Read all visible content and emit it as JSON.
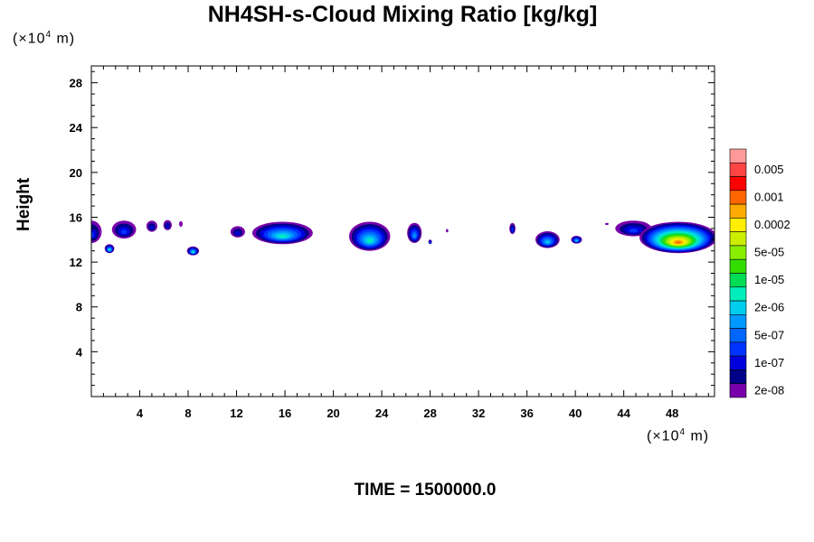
{
  "chart_data": {
    "type": "heatmap",
    "title": "NH4SH-s-Cloud Mixing Ratio [kg/kg]",
    "ylabel": "Height",
    "xlabel": "",
    "x_unit_prefix": "(×10",
    "x_unit_exp": "4",
    "x_unit_suffix": " m)",
    "y_unit_prefix": "(×10",
    "y_unit_exp": "4",
    "y_unit_suffix": " m)",
    "xlim": [
      0,
      51.5
    ],
    "ylim": [
      0,
      29.5
    ],
    "x_ticks": [
      4,
      8,
      12,
      16,
      20,
      24,
      28,
      32,
      36,
      40,
      44,
      48
    ],
    "y_ticks": [
      4,
      8,
      12,
      16,
      20,
      24,
      28
    ],
    "colorbar": {
      "labels": [
        "0.005",
        "0.001",
        "0.0002",
        "5e-05",
        "1e-05",
        "2e-06",
        "5e-07",
        "1e-07",
        "2e-08"
      ],
      "colors": [
        "#ff9999",
        "#ff4444",
        "#ff0000",
        "#ff6600",
        "#ffaa00",
        "#ffee00",
        "#ccee00",
        "#88ee00",
        "#33dd00",
        "#00dd55",
        "#00eebb",
        "#00ccee",
        "#0099ff",
        "#0066ff",
        "#0033ff",
        "#0000dd",
        "#000088",
        "#7700aa"
      ]
    },
    "clouds": [
      {
        "x": 0.0,
        "y": 14.7,
        "w": 1.7,
        "h": 2.0,
        "level": 3
      },
      {
        "x": 1.5,
        "y": 13.2,
        "w": 0.8,
        "h": 0.8,
        "level": 7
      },
      {
        "x": 2.7,
        "y": 14.9,
        "w": 2.0,
        "h": 1.6,
        "level": 3
      },
      {
        "x": 5.0,
        "y": 15.2,
        "w": 0.9,
        "h": 1.0,
        "level": 2
      },
      {
        "x": 6.3,
        "y": 15.3,
        "w": 0.7,
        "h": 0.9,
        "level": 2
      },
      {
        "x": 7.4,
        "y": 15.4,
        "w": 0.3,
        "h": 0.5,
        "level": 0
      },
      {
        "x": 8.4,
        "y": 13.0,
        "w": 1.0,
        "h": 0.8,
        "level": 7
      },
      {
        "x": 12.1,
        "y": 14.7,
        "w": 1.2,
        "h": 1.0,
        "level": 2
      },
      {
        "x": 15.8,
        "y": 14.6,
        "w": 5.0,
        "h": 2.0,
        "level": 7
      },
      {
        "x": 23.0,
        "y": 14.3,
        "w": 3.4,
        "h": 2.6,
        "level": 7
      },
      {
        "x": 26.7,
        "y": 14.6,
        "w": 1.2,
        "h": 1.8,
        "level": 5
      },
      {
        "x": 28.0,
        "y": 13.8,
        "w": 0.3,
        "h": 0.4,
        "level": 4
      },
      {
        "x": 29.4,
        "y": 14.8,
        "w": 0.2,
        "h": 0.3,
        "level": 0
      },
      {
        "x": 34.8,
        "y": 15.0,
        "w": 0.5,
        "h": 1.0,
        "level": 3
      },
      {
        "x": 37.7,
        "y": 14.0,
        "w": 2.0,
        "h": 1.5,
        "level": 6
      },
      {
        "x": 40.1,
        "y": 14.0,
        "w": 0.9,
        "h": 0.7,
        "level": 6
      },
      {
        "x": 42.6,
        "y": 15.4,
        "w": 0.3,
        "h": 0.2,
        "level": 0
      },
      {
        "x": 44.8,
        "y": 15.0,
        "w": 3.0,
        "h": 1.4,
        "level": 3
      },
      {
        "x": 48.5,
        "y": 14.2,
        "w": 6.4,
        "h": 2.8,
        "level": 14
      }
    ]
  },
  "footer": {
    "time_label": "TIME = 1500000.0"
  }
}
